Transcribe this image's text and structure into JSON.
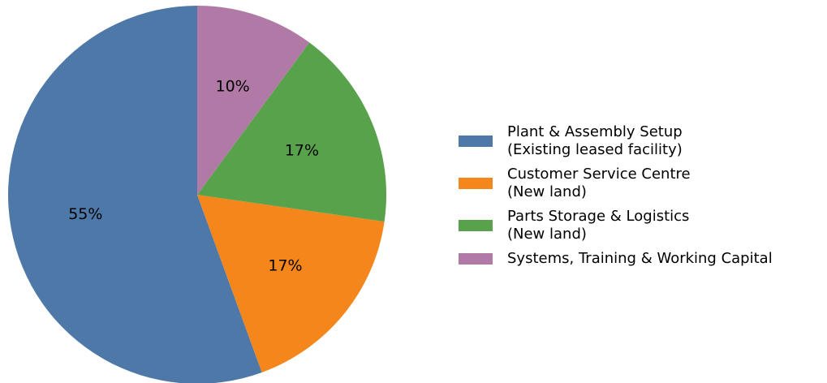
{
  "chart_data": {
    "type": "pie",
    "categories": [
      "Plant & Assembly Setup\n(Existing leased facility)",
      "Customer Service Centre\n(New land)",
      "Parts Storage & Logistics\n(New land)",
      "Systems, Training & Working Capital"
    ],
    "values": [
      55,
      17,
      17,
      10
    ],
    "value_labels": [
      "55%",
      "17%",
      "17%",
      "10%"
    ],
    "colors": [
      "#4e78a8",
      "#f5861b",
      "#58a24c",
      "#b179a5"
    ],
    "legend": "right"
  }
}
